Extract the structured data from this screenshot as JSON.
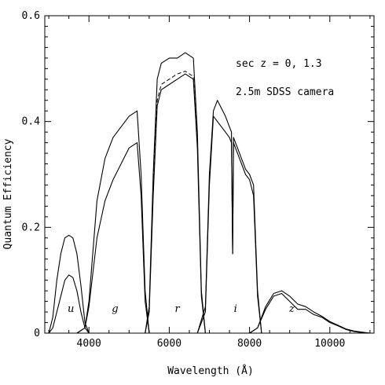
{
  "chart_data": {
    "type": "line",
    "xlabel": "Wavelength (Å)",
    "ylabel": "Quantum Efficiency",
    "xlim": [
      2900,
      11100
    ],
    "ylim": [
      0,
      0.6
    ],
    "xticks": [
      4000,
      6000,
      8000,
      10000
    ],
    "yticks": [
      0,
      0.2,
      0.4,
      0.6
    ],
    "xtick_labels": [
      "4000",
      "6000",
      "8000",
      "10000"
    ],
    "ytick_labels": [
      "0",
      "0.2",
      "0.4",
      "0.6"
    ],
    "annotations": [
      "sec z = 0, 1.3",
      "2.5m SDSS camera"
    ],
    "bands": [
      {
        "label": "u",
        "x": 3550,
        "y": 0.04
      },
      {
        "label": "g",
        "x": 4650,
        "y": 0.04
      },
      {
        "label": "r",
        "x": 6200,
        "y": 0.04
      },
      {
        "label": "i",
        "x": 7650,
        "y": 0.04
      },
      {
        "label": "z",
        "x": 9050,
        "y": 0.04
      }
    ],
    "grid": false,
    "series": [
      {
        "style": "solid",
        "x": [
          3000,
          3100,
          3200,
          3300,
          3400,
          3500,
          3600,
          3700,
          3800,
          3900,
          4000
        ],
        "y": [
          0.0,
          0.03,
          0.1,
          0.15,
          0.18,
          0.185,
          0.18,
          0.15,
          0.09,
          0.02,
          0.0
        ]
      },
      {
        "style": "solid",
        "x": [
          3000,
          3100,
          3200,
          3300,
          3400,
          3500,
          3600,
          3700,
          3800,
          3900,
          4000
        ],
        "y": [
          0.0,
          0.01,
          0.04,
          0.07,
          0.1,
          0.11,
          0.105,
          0.08,
          0.04,
          0.01,
          0.0
        ]
      },
      {
        "style": "solid",
        "x": [
          3700,
          3900,
          4000,
          4200,
          4400,
          4600,
          4800,
          5000,
          5200,
          5300,
          5400,
          5500
        ],
        "y": [
          0.0,
          0.01,
          0.06,
          0.25,
          0.33,
          0.37,
          0.39,
          0.41,
          0.42,
          0.3,
          0.08,
          0.0
        ]
      },
      {
        "style": "solid",
        "x": [
          3700,
          3900,
          4000,
          4200,
          4400,
          4600,
          4800,
          5000,
          5200,
          5300,
          5400,
          5500
        ],
        "y": [
          0.0,
          0.01,
          0.05,
          0.18,
          0.25,
          0.29,
          0.32,
          0.35,
          0.36,
          0.26,
          0.06,
          0.0
        ]
      },
      {
        "style": "solid",
        "x": [
          5400,
          5500,
          5600,
          5700,
          5800,
          6000,
          6200,
          6400,
          6600,
          6700,
          6800,
          6900
        ],
        "y": [
          0.0,
          0.05,
          0.3,
          0.48,
          0.51,
          0.52,
          0.52,
          0.53,
          0.52,
          0.38,
          0.08,
          0.0
        ]
      },
      {
        "style": "solid",
        "x": [
          5400,
          5500,
          5600,
          5700,
          5800,
          6000,
          6200,
          6400,
          6600,
          6700,
          6800,
          6900
        ],
        "y": [
          0.0,
          0.04,
          0.26,
          0.43,
          0.46,
          0.47,
          0.48,
          0.49,
          0.48,
          0.35,
          0.07,
          0.0
        ]
      },
      {
        "style": "dashed",
        "x": [
          5600,
          5700,
          5800,
          6000,
          6200,
          6400,
          6600,
          6700
        ],
        "y": [
          0.27,
          0.44,
          0.47,
          0.48,
          0.49,
          0.495,
          0.485,
          0.36
        ]
      },
      {
        "style": "solid",
        "x": [
          6700,
          6900,
          7000,
          7100,
          7200,
          7400,
          7500,
          7550,
          7580,
          7600,
          7650,
          7700,
          7800,
          7900,
          8000,
          8100,
          8200,
          8300
        ],
        "y": [
          0.0,
          0.05,
          0.3,
          0.42,
          0.44,
          0.41,
          0.39,
          0.38,
          0.15,
          0.37,
          0.36,
          0.35,
          0.33,
          0.31,
          0.3,
          0.28,
          0.08,
          0.0
        ]
      },
      {
        "style": "solid",
        "x": [
          6700,
          6900,
          7000,
          7100,
          7200,
          7400,
          7500,
          7550,
          7580,
          7600,
          7650,
          7700,
          7800,
          7900,
          8000,
          8100,
          8200,
          8300
        ],
        "y": [
          0.0,
          0.04,
          0.28,
          0.41,
          0.4,
          0.38,
          0.37,
          0.36,
          0.15,
          0.36,
          0.35,
          0.34,
          0.32,
          0.3,
          0.29,
          0.26,
          0.07,
          0.0
        ]
      },
      {
        "style": "solid",
        "x": [
          8000,
          8200,
          8400,
          8600,
          8800,
          9000,
          9200,
          9400,
          9600,
          9800,
          10000,
          10200,
          10400,
          10600,
          10800,
          11000
        ],
        "y": [
          0.0,
          0.01,
          0.05,
          0.075,
          0.08,
          0.07,
          0.055,
          0.05,
          0.04,
          0.032,
          0.022,
          0.015,
          0.008,
          0.004,
          0.002,
          0.0
        ]
      },
      {
        "style": "solid",
        "x": [
          8000,
          8200,
          8400,
          8600,
          8800,
          9000,
          9200,
          9400,
          9600,
          9800,
          10000,
          10200,
          10400,
          10600,
          10800,
          11000
        ],
        "y": [
          0.0,
          0.01,
          0.045,
          0.07,
          0.075,
          0.06,
          0.045,
          0.045,
          0.035,
          0.03,
          0.02,
          0.014,
          0.007,
          0.003,
          0.001,
          0.0
        ]
      }
    ]
  }
}
